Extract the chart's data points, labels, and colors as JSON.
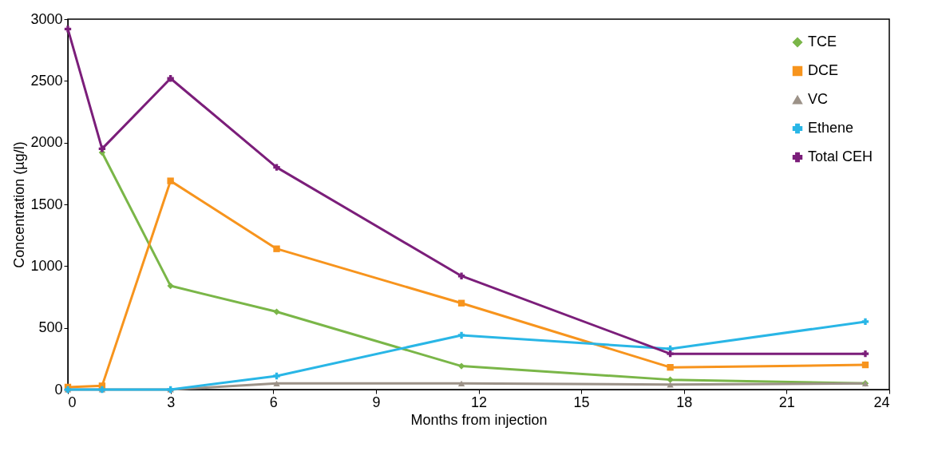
{
  "chart_data": {
    "type": "line",
    "xlabel": "Months from injection",
    "ylabel": "Concentration (µg/l)",
    "x": [
      0,
      1,
      3,
      6.1,
      11.5,
      17.6,
      23.3
    ],
    "xlim": [
      0,
      24
    ],
    "xticks": [
      0,
      3,
      6,
      9,
      12,
      15,
      18,
      21,
      24
    ],
    "ylim": [
      0,
      3000
    ],
    "yticks": [
      0,
      500,
      1000,
      1500,
      2000,
      2500,
      3000
    ],
    "grid": false,
    "legend": "top right",
    "line_style": "solid",
    "series": [
      {
        "name": "TCE",
        "color": "#7ab648",
        "marker": "diamond",
        "values": [
          null,
          1920,
          840,
          630,
          190,
          80,
          50
        ]
      },
      {
        "name": "DCE",
        "color": "#f7941d",
        "marker": "square",
        "values": [
          20,
          30,
          1690,
          1140,
          700,
          180,
          200
        ]
      },
      {
        "name": "VC",
        "color": "#9c9288",
        "marker": "triangle",
        "values": [
          0,
          0,
          0,
          50,
          50,
          40,
          50
        ]
      },
      {
        "name": "Ethene",
        "color": "#29b6e6",
        "marker": "cross",
        "values": [
          0,
          0,
          0,
          110,
          440,
          330,
          550
        ]
      },
      {
        "name": "Total CEH",
        "color": "#7b1e7a",
        "marker": "cross",
        "values": [
          2920,
          1950,
          2520,
          1800,
          920,
          290,
          290
        ]
      }
    ]
  }
}
